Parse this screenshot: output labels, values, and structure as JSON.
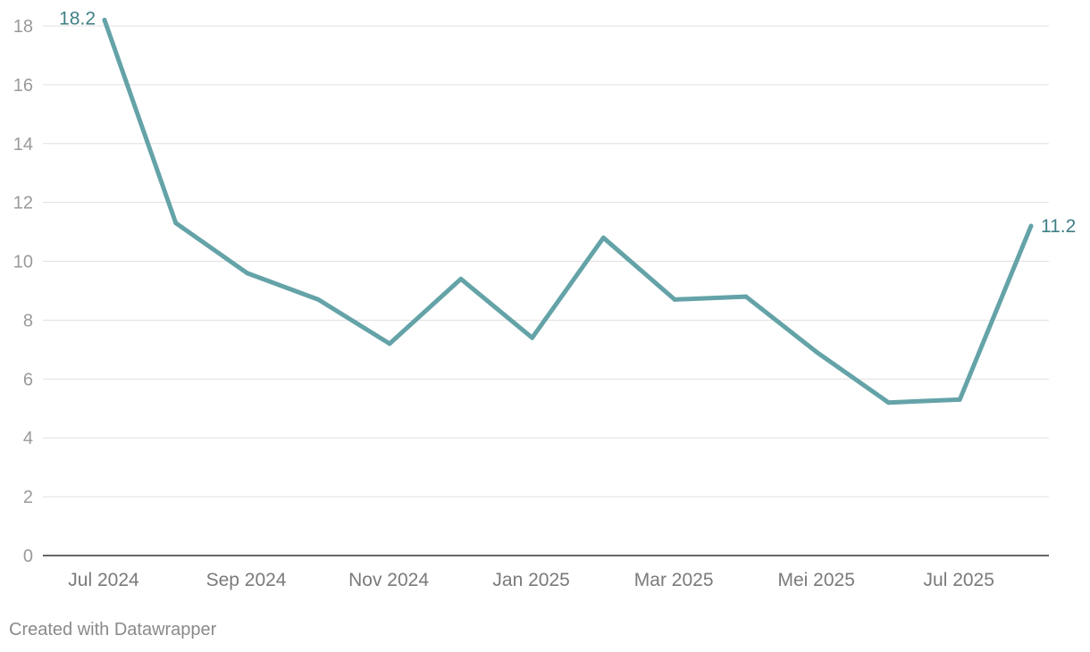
{
  "footer": {
    "credit": "Created with Datawrapper"
  },
  "colors": {
    "line": "#64a3a8",
    "label": "#3f7f85"
  },
  "chart_data": {
    "type": "line",
    "title": "",
    "xlabel": "",
    "ylabel": "",
    "ylim": [
      0,
      18
    ],
    "yticks": [
      0,
      2,
      4,
      6,
      8,
      10,
      12,
      14,
      16,
      18
    ],
    "grid": true,
    "x": [
      "Jul 2024",
      "Aug 2024",
      "Sep 2024",
      "Okt 2024",
      "Nov 2024",
      "Dec 2024",
      "Jan 2025",
      "Feb 2025",
      "Mar 2025",
      "Apr 2025",
      "Mei 2025",
      "Jun 2025",
      "Jul 2025",
      "Aug 2025"
    ],
    "xtick_labels": [
      "Jul 2024",
      "Sep 2024",
      "Nov 2024",
      "Jan 2025",
      "Mar 2025",
      "Mei 2025",
      "Jul 2025"
    ],
    "xtick_index": [
      0,
      2,
      4,
      6,
      8,
      10,
      12
    ],
    "series": [
      {
        "name": "value",
        "values": [
          18.2,
          11.3,
          9.6,
          8.7,
          7.2,
          9.4,
          7.4,
          10.8,
          8.7,
          8.8,
          6.9,
          5.2,
          5.3,
          11.2
        ]
      }
    ],
    "annotations": [
      {
        "index": 0,
        "text": "18.2"
      },
      {
        "index": 13,
        "text": "11.2"
      }
    ]
  }
}
